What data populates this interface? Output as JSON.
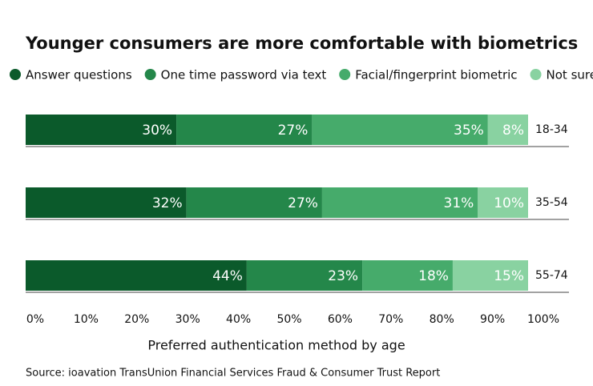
{
  "chart_data": {
    "type": "stacked-bar-horizontal",
    "title": "Younger consumers are more comfortable with biometrics",
    "x_label": "Preferred authentication method by age",
    "source": "Source: ioavation TransUnion Financial Services Fraud & Consumer Trust Report",
    "categories": [
      "18-34",
      "35-54",
      "55-74"
    ],
    "series": [
      {
        "name": "Answer questions",
        "color": "#0b5a2b",
        "values": [
          30,
          32,
          44
        ],
        "value_labels": [
          "30%",
          "32%",
          "44%"
        ]
      },
      {
        "name": "One time password via text",
        "color": "#24874a",
        "values": [
          27,
          27,
          23
        ],
        "value_labels": [
          "27%",
          "27%",
          "23%"
        ]
      },
      {
        "name": "Facial/fingerprint biometric",
        "color": "#46ab6b",
        "values": [
          35,
          31,
          18
        ],
        "value_labels": [
          "35%",
          "31%",
          "18%"
        ]
      },
      {
        "name": "Not sure",
        "color": "#89d2a1",
        "values": [
          8,
          10,
          15
        ],
        "value_labels": [
          "8%",
          "10%",
          "15%"
        ]
      }
    ],
    "xlim": [
      0,
      100
    ],
    "xticks": [
      {
        "value": 0,
        "label": "0%"
      },
      {
        "value": 10,
        "label": "10%"
      },
      {
        "value": 20,
        "label": "20%"
      },
      {
        "value": 30,
        "label": "30%"
      },
      {
        "value": 40,
        "label": "40%"
      },
      {
        "value": 50,
        "label": "50%"
      },
      {
        "value": 60,
        "label": "60%"
      },
      {
        "value": 70,
        "label": "70%"
      },
      {
        "value": 80,
        "label": "80%"
      },
      {
        "value": 90,
        "label": "90%"
      },
      {
        "value": 100,
        "label": "100%"
      }
    ],
    "legend": "top"
  }
}
